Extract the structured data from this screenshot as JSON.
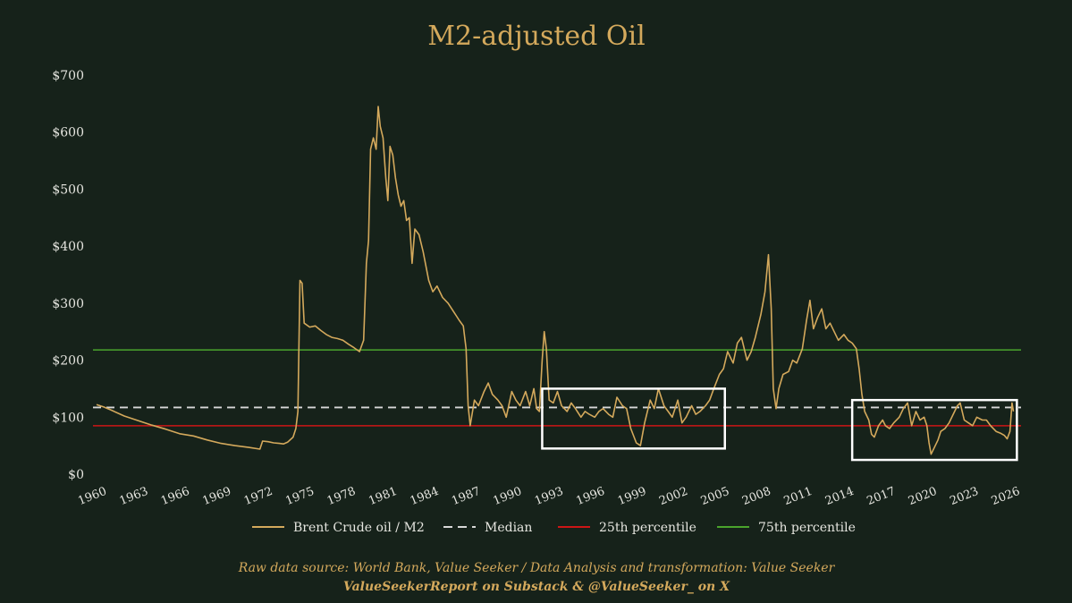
{
  "chart_data": {
    "type": "line",
    "title": "M2-adjusted Oil",
    "xlabel": "",
    "ylabel": "",
    "xlim": [
      1960,
      2026.8
    ],
    "ylim": [
      0,
      700
    ],
    "y_ticks": [
      0,
      100,
      200,
      300,
      400,
      500,
      600,
      700
    ],
    "y_tick_labels": [
      "$0",
      "$100",
      "$200",
      "$300",
      "$400",
      "$500",
      "$600",
      "$700"
    ],
    "x_ticks": [
      1960,
      1963,
      1966,
      1969,
      1972,
      1975,
      1978,
      1981,
      1984,
      1987,
      1990,
      1993,
      1996,
      1999,
      2002,
      2005,
      2008,
      2011,
      2014,
      2017,
      2020,
      2023,
      2026
    ],
    "x_tick_labels": [
      "1960",
      "1963",
      "1966",
      "1969",
      "1972",
      "1975",
      "1978",
      "1981",
      "1984",
      "1987",
      "1990",
      "1993",
      "1996",
      "1999",
      "2002",
      "2005",
      "2008",
      "2011",
      "2014",
      "2017",
      "2020",
      "2023",
      "2026"
    ],
    "series": [
      {
        "name": "Brent Crude oil / M2",
        "color": "#d4a95c",
        "points": [
          [
            1960,
            122
          ],
          [
            1960.5,
            118
          ],
          [
            1961,
            113
          ],
          [
            1962,
            102
          ],
          [
            1963,
            94
          ],
          [
            1964,
            86
          ],
          [
            1965,
            79
          ],
          [
            1966,
            71
          ],
          [
            1967,
            67
          ],
          [
            1968,
            60
          ],
          [
            1969,
            54
          ],
          [
            1970,
            50
          ],
          [
            1971,
            47
          ],
          [
            1971.8,
            44
          ],
          [
            1972,
            58
          ],
          [
            1972.4,
            57
          ],
          [
            1972.8,
            55
          ],
          [
            1973.2,
            54
          ],
          [
            1973.5,
            53
          ],
          [
            1973.8,
            56
          ],
          [
            1974.2,
            65
          ],
          [
            1974.4,
            80
          ],
          [
            1974.55,
            110
          ],
          [
            1974.7,
            340
          ],
          [
            1974.85,
            335
          ],
          [
            1975,
            265
          ],
          [
            1975.4,
            258
          ],
          [
            1975.8,
            260
          ],
          [
            1976.2,
            252
          ],
          [
            1976.6,
            245
          ],
          [
            1977,
            240
          ],
          [
            1977.4,
            238
          ],
          [
            1977.8,
            235
          ],
          [
            1978.2,
            228
          ],
          [
            1978.6,
            222
          ],
          [
            1979,
            215
          ],
          [
            1979.3,
            235
          ],
          [
            1979.5,
            370
          ],
          [
            1979.65,
            410
          ],
          [
            1979.8,
            570
          ],
          [
            1980,
            590
          ],
          [
            1980.2,
            570
          ],
          [
            1980.35,
            645
          ],
          [
            1980.5,
            610
          ],
          [
            1980.7,
            590
          ],
          [
            1980.9,
            520
          ],
          [
            1981.05,
            480
          ],
          [
            1981.2,
            575
          ],
          [
            1981.4,
            560
          ],
          [
            1981.6,
            520
          ],
          [
            1981.8,
            490
          ],
          [
            1982,
            470
          ],
          [
            1982.2,
            480
          ],
          [
            1982.4,
            445
          ],
          [
            1982.6,
            450
          ],
          [
            1982.8,
            370
          ],
          [
            1983,
            430
          ],
          [
            1983.3,
            420
          ],
          [
            1983.6,
            390
          ],
          [
            1984,
            340
          ],
          [
            1984.3,
            320
          ],
          [
            1984.6,
            330
          ],
          [
            1985,
            310
          ],
          [
            1985.4,
            300
          ],
          [
            1985.8,
            285
          ],
          [
            1986.2,
            270
          ],
          [
            1986.5,
            260
          ],
          [
            1986.7,
            220
          ],
          [
            1986.85,
            120
          ],
          [
            1987,
            85
          ],
          [
            1987.3,
            130
          ],
          [
            1987.6,
            120
          ],
          [
            1988,
            145
          ],
          [
            1988.3,
            160
          ],
          [
            1988.6,
            140
          ],
          [
            1989,
            130
          ],
          [
            1989.3,
            120
          ],
          [
            1989.6,
            100
          ],
          [
            1990,
            145
          ],
          [
            1990.3,
            130
          ],
          [
            1990.6,
            120
          ],
          [
            1991,
            145
          ],
          [
            1991.3,
            120
          ],
          [
            1991.6,
            150
          ],
          [
            1991.8,
            115
          ],
          [
            1992,
            110
          ],
          [
            1992.2,
            200
          ],
          [
            1992.35,
            250
          ],
          [
            1992.5,
            220
          ],
          [
            1992.7,
            130
          ],
          [
            1993,
            125
          ],
          [
            1993.3,
            145
          ],
          [
            1993.6,
            120
          ],
          [
            1994,
            110
          ],
          [
            1994.3,
            125
          ],
          [
            1994.6,
            115
          ],
          [
            1995,
            100
          ],
          [
            1995.3,
            110
          ],
          [
            1995.6,
            105
          ],
          [
            1996,
            100
          ],
          [
            1996.3,
            110
          ],
          [
            1996.6,
            115
          ],
          [
            1997,
            105
          ],
          [
            1997.3,
            100
          ],
          [
            1997.6,
            135
          ],
          [
            1998,
            120
          ],
          [
            1998.3,
            115
          ],
          [
            1998.6,
            80
          ],
          [
            1999,
            55
          ],
          [
            1999.3,
            50
          ],
          [
            1999.6,
            90
          ],
          [
            2000,
            130
          ],
          [
            2000.3,
            115
          ],
          [
            2000.6,
            150
          ],
          [
            2001,
            120
          ],
          [
            2001.3,
            110
          ],
          [
            2001.6,
            100
          ],
          [
            2002,
            130
          ],
          [
            2002.3,
            90
          ],
          [
            2002.6,
            100
          ],
          [
            2003,
            120
          ],
          [
            2003.3,
            105
          ],
          [
            2003.6,
            110
          ],
          [
            2004,
            120
          ],
          [
            2004.3,
            130
          ],
          [
            2004.6,
            150
          ],
          [
            2005,
            175
          ],
          [
            2005.3,
            185
          ],
          [
            2005.6,
            215
          ],
          [
            2006,
            195
          ],
          [
            2006.3,
            230
          ],
          [
            2006.6,
            240
          ],
          [
            2007,
            200
          ],
          [
            2007.3,
            215
          ],
          [
            2007.6,
            240
          ],
          [
            2008,
            280
          ],
          [
            2008.3,
            320
          ],
          [
            2008.55,
            385
          ],
          [
            2008.75,
            290
          ],
          [
            2008.9,
            150
          ],
          [
            2009.1,
            115
          ],
          [
            2009.3,
            150
          ],
          [
            2009.6,
            175
          ],
          [
            2010,
            180
          ],
          [
            2010.3,
            200
          ],
          [
            2010.6,
            195
          ],
          [
            2011,
            220
          ],
          [
            2011.3,
            270
          ],
          [
            2011.55,
            305
          ],
          [
            2011.8,
            255
          ],
          [
            2012.1,
            275
          ],
          [
            2012.4,
            290
          ],
          [
            2012.7,
            255
          ],
          [
            2013,
            265
          ],
          [
            2013.3,
            250
          ],
          [
            2013.6,
            235
          ],
          [
            2014,
            245
          ],
          [
            2014.3,
            235
          ],
          [
            2014.6,
            230
          ],
          [
            2014.9,
            220
          ],
          [
            2015.1,
            185
          ],
          [
            2015.3,
            140
          ],
          [
            2015.5,
            110
          ],
          [
            2015.8,
            95
          ],
          [
            2016,
            70
          ],
          [
            2016.2,
            65
          ],
          [
            2016.5,
            85
          ],
          [
            2016.8,
            95
          ],
          [
            2017,
            85
          ],
          [
            2017.3,
            80
          ],
          [
            2017.6,
            90
          ],
          [
            2018,
            100
          ],
          [
            2018.3,
            115
          ],
          [
            2018.6,
            125
          ],
          [
            2018.9,
            85
          ],
          [
            2019.2,
            110
          ],
          [
            2019.5,
            95
          ],
          [
            2019.8,
            100
          ],
          [
            2020,
            85
          ],
          [
            2020.15,
            55
          ],
          [
            2020.3,
            35
          ],
          [
            2020.5,
            45
          ],
          [
            2020.8,
            60
          ],
          [
            2021,
            75
          ],
          [
            2021.3,
            80
          ],
          [
            2021.6,
            90
          ],
          [
            2022,
            110
          ],
          [
            2022.2,
            120
          ],
          [
            2022.4,
            125
          ],
          [
            2022.7,
            95
          ],
          [
            2023,
            90
          ],
          [
            2023.3,
            85
          ],
          [
            2023.6,
            100
          ],
          [
            2024,
            95
          ],
          [
            2024.3,
            95
          ],
          [
            2024.6,
            85
          ],
          [
            2025,
            75
          ],
          [
            2025.3,
            72
          ],
          [
            2025.6,
            68
          ],
          [
            2025.8,
            62
          ],
          [
            2026,
            75
          ],
          [
            2026.15,
            125
          ],
          [
            2026.25,
            110
          ]
        ]
      }
    ],
    "reference_lines": [
      {
        "name": "Median",
        "value": 117,
        "color": "#d8d8d8",
        "style": "dashed"
      },
      {
        "name": "25th percentile",
        "value": 85,
        "color": "#cc1616",
        "style": "solid"
      },
      {
        "name": "75th percentile",
        "value": 218,
        "color": "#4aa42c",
        "style": "solid"
      }
    ],
    "highlight_boxes": [
      {
        "x_range": [
          1992.2,
          2005.4
        ],
        "y_range": [
          45,
          150
        ],
        "color": "#ffffff"
      },
      {
        "x_range": [
          2014.6,
          2026.5
        ],
        "y_range": [
          25,
          130
        ],
        "color": "#ffffff"
      }
    ],
    "legend": {
      "placement": "bottom",
      "entries": [
        {
          "label": "Brent Crude oil / M2",
          "color": "#d4a95c",
          "style": "solid"
        },
        {
          "label": "Median",
          "color": "#d8d8d8",
          "style": "dashed"
        },
        {
          "label": "25th percentile",
          "color": "#cc1616",
          "style": "solid"
        },
        {
          "label": "75th percentile",
          "color": "#4aa42c",
          "style": "solid"
        }
      ]
    },
    "grid": false
  },
  "footer": {
    "source_line": "Raw data source: World Bank, Value Seeker / Data Analysis and transformation: Value Seeker",
    "credit_line": "ValueSeekerReport on Substack & @ValueSeeker_ on X"
  },
  "colors": {
    "background": "#16221a",
    "accent": "#d4a95c",
    "text": "#e6e6e0"
  }
}
